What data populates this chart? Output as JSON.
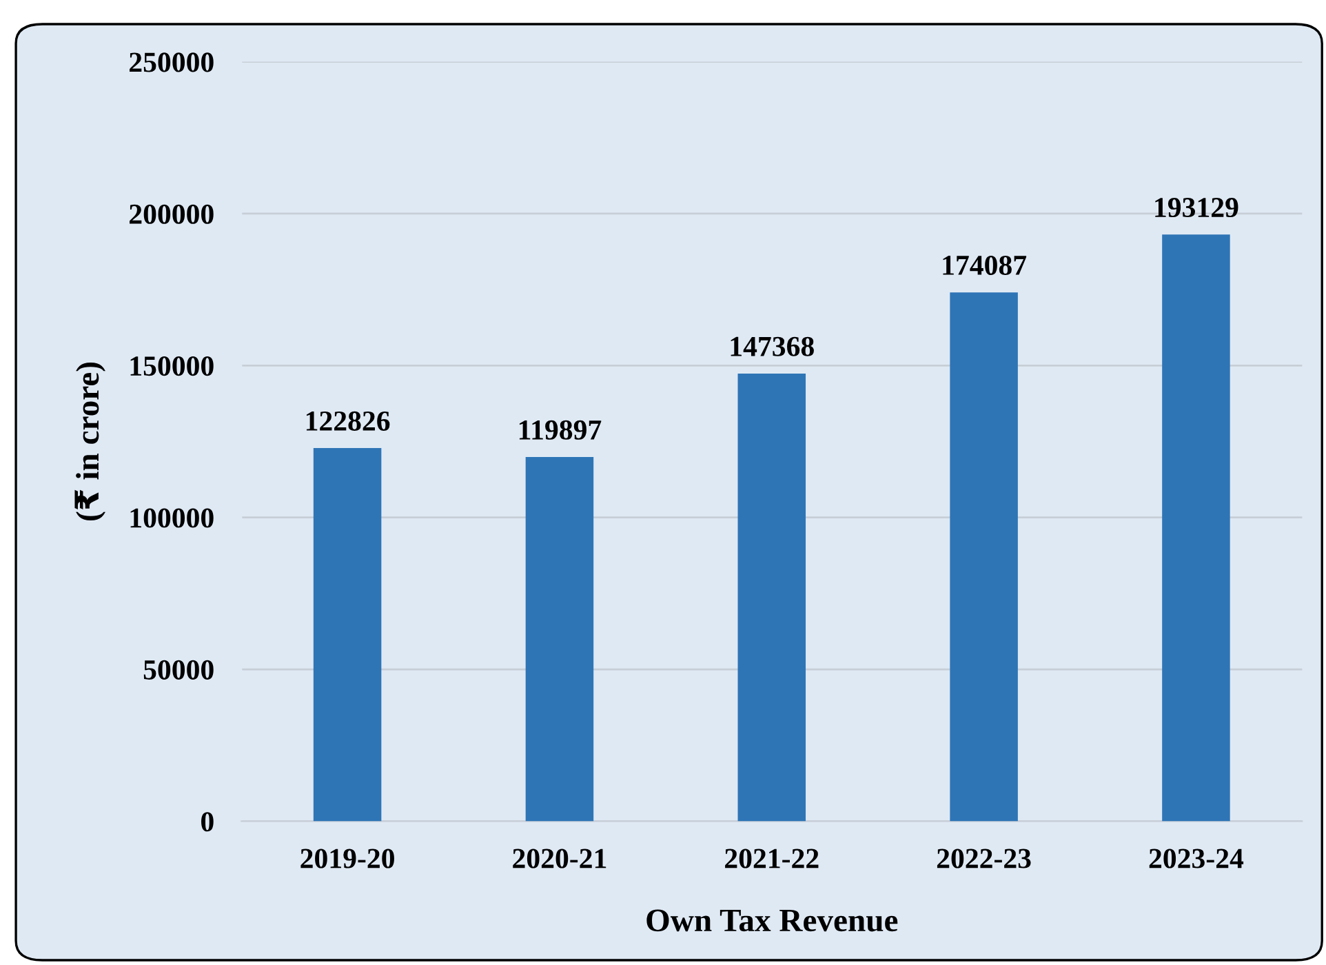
{
  "chart_data": {
    "type": "bar",
    "xlabel": "Own Tax Revenue",
    "ylabel": "(₹ in crore)",
    "categories": [
      "2019-20",
      "2020-21",
      "2021-22",
      "2022-23",
      "2023-24"
    ],
    "values": [
      122826,
      119897,
      147368,
      174087,
      193129
    ],
    "color": "#2e75b6",
    "ylim": [
      0,
      250000
    ],
    "yticks": [
      0,
      50000,
      100000,
      150000,
      200000,
      250000
    ],
    "grid": "y",
    "data_labels": true,
    "legend": false
  }
}
